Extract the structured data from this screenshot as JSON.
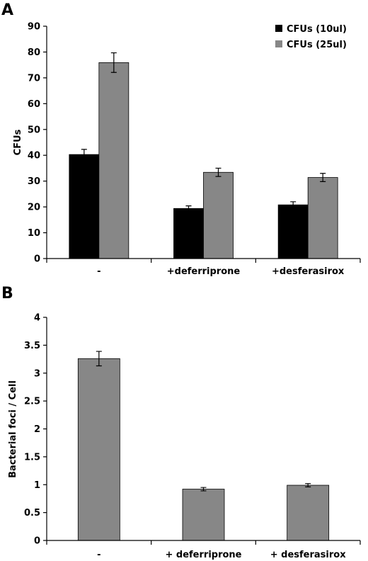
{
  "chart_data": [
    {
      "panel_label": "A",
      "type": "bar",
      "categories": [
        "-",
        "+deferriprone",
        "+desferasirox"
      ],
      "ylabel": "CFUs",
      "xlabel": "",
      "ylim": [
        0,
        90
      ],
      "yticks": [
        0,
        10,
        20,
        30,
        40,
        50,
        60,
        70,
        80,
        90
      ],
      "grid": false,
      "legend_position": "top-right",
      "series": [
        {
          "name": "CFUs (10ul)",
          "color": "#000000",
          "values": [
            40.3,
            19.4,
            20.8
          ],
          "errors": [
            2.0,
            1.0,
            1.2
          ]
        },
        {
          "name": "CFUs (25ul)",
          "color": "#878787",
          "values": [
            75.9,
            33.4,
            31.4
          ],
          "errors": [
            3.8,
            1.6,
            1.6
          ]
        }
      ]
    },
    {
      "panel_label": "B",
      "type": "bar",
      "categories": [
        "-",
        "+ deferriprone",
        "+ desferasirox"
      ],
      "ylabel": "Bacterial foci / Cell",
      "xlabel": "",
      "ylim": [
        0,
        4
      ],
      "yticks": [
        "0",
        "0.5",
        "1",
        "1.5",
        "2",
        "2.5",
        "3",
        "3.5",
        "4"
      ],
      "grid": false,
      "series": [
        {
          "color": "#878787",
          "values": [
            3.26,
            0.92,
            0.99
          ],
          "errors": [
            0.13,
            0.03,
            0.03
          ]
        }
      ]
    }
  ]
}
